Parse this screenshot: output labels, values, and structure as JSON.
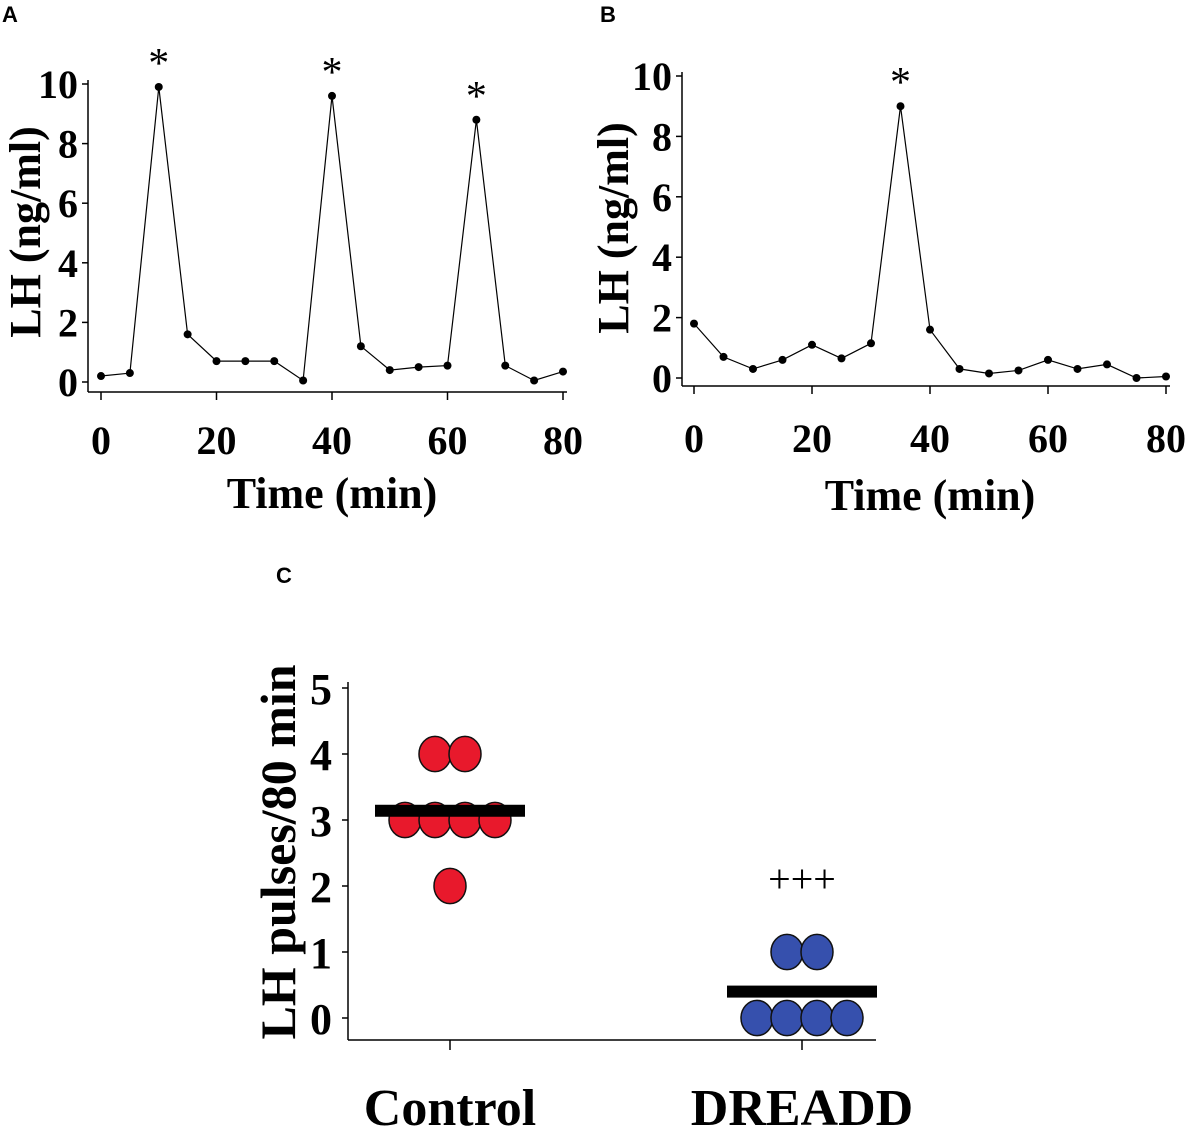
{
  "chart_data": [
    {
      "type": "line",
      "panel": "A",
      "xlabel": "Time (min)",
      "ylabel": "LH (ng/ml)",
      "xlim": [
        0,
        80
      ],
      "ylim": [
        0,
        10
      ],
      "xticks": [
        "0",
        "20",
        "40",
        "60",
        "80"
      ],
      "yticks": [
        "0",
        "2",
        "4",
        "6",
        "8",
        "10"
      ],
      "x": [
        0,
        5,
        10,
        15,
        20,
        25,
        30,
        35,
        40,
        45,
        50,
        55,
        60,
        65,
        70,
        75,
        80
      ],
      "y": [
        0.2,
        0.3,
        9.9,
        1.6,
        0.7,
        0.7,
        0.7,
        0.05,
        9.6,
        1.2,
        0.4,
        0.5,
        0.55,
        8.8,
        0.55,
        0.05,
        0.35
      ],
      "annotations": [
        {
          "x": 10,
          "text": "*"
        },
        {
          "x": 40,
          "text": "*"
        },
        {
          "x": 65,
          "text": "*"
        }
      ]
    },
    {
      "type": "line",
      "panel": "B",
      "xlabel": "Time (min)",
      "ylabel": "LH (ng/ml)",
      "xlim": [
        0,
        80
      ],
      "ylim": [
        0,
        10
      ],
      "xticks": [
        "0",
        "20",
        "40",
        "60",
        "80"
      ],
      "yticks": [
        "0",
        "2",
        "4",
        "6",
        "8",
        "10"
      ],
      "x": [
        0,
        5,
        10,
        15,
        20,
        25,
        30,
        35,
        40,
        45,
        50,
        55,
        60,
        65,
        70,
        75,
        80
      ],
      "y": [
        1.8,
        0.7,
        0.3,
        0.6,
        1.1,
        0.65,
        1.15,
        9.0,
        1.6,
        0.3,
        0.15,
        0.25,
        0.6,
        0.3,
        0.45,
        0.0,
        0.05
      ],
      "annotations": [
        {
          "x": 35,
          "text": "*"
        }
      ]
    },
    {
      "type": "scatter",
      "panel": "C",
      "ylabel": "LH pulses/80 min",
      "ylim": [
        0,
        5
      ],
      "yticks": [
        "0",
        "1",
        "2",
        "3",
        "4",
        "5"
      ],
      "categories": [
        "Control",
        "DREADD"
      ],
      "series": [
        {
          "name": "Control",
          "color": "#e8192c",
          "values": [
            4,
            4,
            3,
            3,
            3,
            3,
            2
          ],
          "mean": 3.14
        },
        {
          "name": "DREADD",
          "color": "#3650ad",
          "values": [
            1,
            1,
            0,
            0,
            0,
            0
          ],
          "mean": 0.4
        }
      ],
      "annotations": [
        {
          "category": "DREADD",
          "text": "+++"
        }
      ]
    }
  ]
}
